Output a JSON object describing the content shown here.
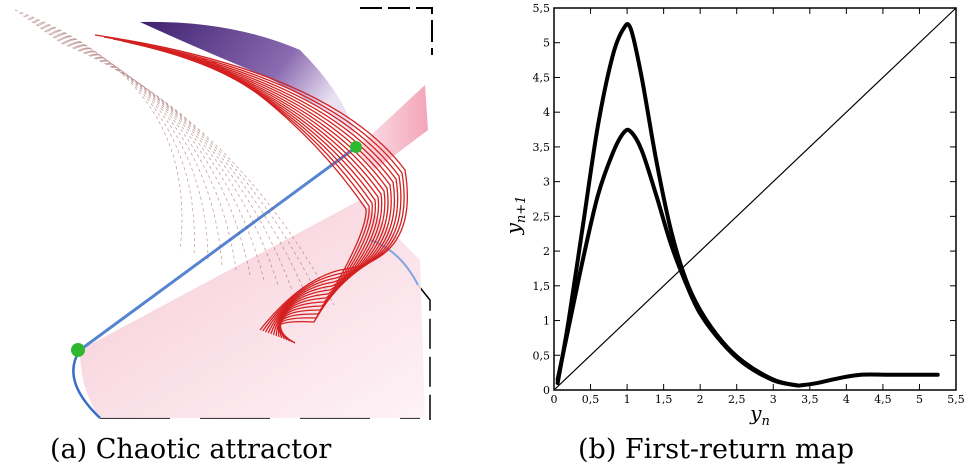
{
  "captions": {
    "a": "(a) Chaotic attractor",
    "b": "(b) First-return map"
  },
  "colors": {
    "trajectory": "#d42020",
    "manifold_blue": "#3a6ec8",
    "manifold_purple": "#4a2a7a",
    "pink_region": "#f3b8c8",
    "fixed_point": "#2fb82f",
    "map_curve": "#000000"
  },
  "chart_data": [
    {
      "type": "image",
      "id": "a",
      "description_visible": "",
      "fixed_points": 2
    },
    {
      "type": "line",
      "id": "b",
      "xlabel": "y_n",
      "ylabel": "y_n+1",
      "xlim": [
        0,
        5.5
      ],
      "ylim": [
        0,
        5.5
      ],
      "xticks": [
        0,
        0.5,
        1,
        1.5,
        2,
        2.5,
        3,
        3.5,
        4,
        4.5,
        5,
        5.5
      ],
      "xtick_labels": [
        "0",
        "0,5",
        "1",
        "1,5",
        "2",
        "2,5",
        "3",
        "3,5",
        "4",
        "4,5",
        "5",
        "5,5"
      ],
      "yticks": [
        0,
        0.5,
        1,
        1.5,
        2,
        2.5,
        3,
        3.5,
        4,
        4.5,
        5,
        5.5
      ],
      "ytick_labels": [
        "0",
        "0,5",
        "1",
        "1,5",
        "2",
        "2,5",
        "3",
        "3,5",
        "4",
        "4,5",
        "5",
        "5,5"
      ],
      "grid": false,
      "series": [
        {
          "x": [
            0.05,
            0.2,
            0.4,
            0.6,
            0.8,
            0.95,
            1.05,
            1.2,
            1.4,
            1.6,
            1.8,
            2.0,
            2.3,
            2.6,
            3.0,
            3.3,
            3.4,
            3.6,
            3.9,
            4.2,
            4.6,
            5.0,
            5.25
          ],
          "y": [
            0.1,
            1.0,
            2.4,
            3.8,
            4.8,
            5.2,
            5.2,
            4.5,
            3.3,
            2.3,
            1.6,
            1.15,
            0.7,
            0.4,
            0.15,
            0.07,
            0.07,
            0.1,
            0.17,
            0.22,
            0.22,
            0.22,
            0.22
          ]
        },
        {
          "x": [
            0.05,
            0.2,
            0.4,
            0.6,
            0.8,
            0.95,
            1.05,
            1.2,
            1.4,
            1.6,
            1.8,
            2.0,
            2.3,
            2.6,
            3.0,
            3.3
          ],
          "y": [
            0.15,
            0.9,
            1.9,
            2.8,
            3.4,
            3.7,
            3.72,
            3.45,
            2.8,
            2.1,
            1.55,
            1.1,
            0.68,
            0.38,
            0.14,
            0.07
          ]
        },
        {
          "x": [
            0,
            5.5
          ],
          "y": [
            0,
            5.5
          ],
          "role": "diagonal"
        }
      ]
    }
  ]
}
